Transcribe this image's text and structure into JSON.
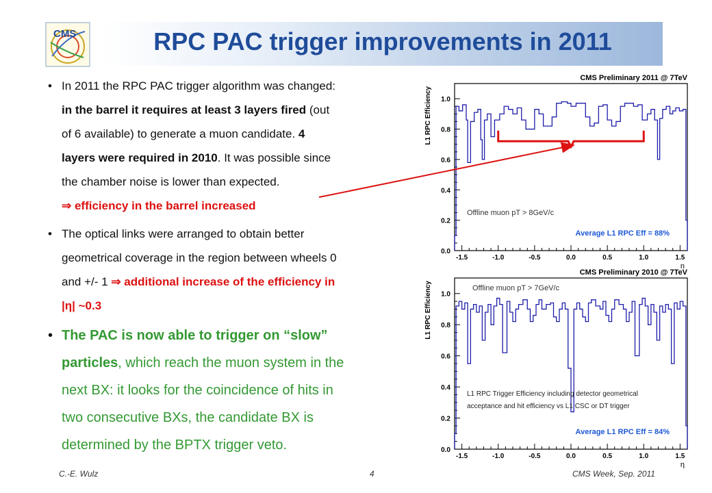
{
  "slide": {
    "title": "RPC PAC trigger improvements in 2011",
    "logo_text": "CMS",
    "footer": {
      "author": "C.-E. Wulz",
      "page": "4",
      "event": "CMS Week, Sep. 2011"
    }
  },
  "bullets": {
    "b1": {
      "l1": "In 2011 the RPC PAC trigger algorithm was changed:",
      "l2_bold": "in the barrel it requires at least 3 layers fired",
      "l2_rest": " (out",
      "l3_rest": "of 6 available) to generate a muon candidate. ",
      "l3_bold": "4",
      "l4_bold": "layers were required in 2010",
      "l4_rest": ". It was possible since",
      "l5": "the chamber noise is lower than expected.",
      "l6_sym": "⇒",
      "l6_red": " efficiency in the barrel increased"
    },
    "b2": {
      "l1": "The optical links were arranged to obtain better",
      "l2": "geometrical coverage in the region between wheels 0",
      "l3_start": "and +/- 1 ",
      "l3_sym": "⇒",
      "l3_red": " additional increase of the efficiency in",
      "l4_red": "|η| ~0.3"
    },
    "b3": {
      "l1_bold": "The PAC is now able to trigger on “slow”",
      "l2_bold": "particles",
      "l2_rest": ", which reach the muon system in the",
      "l3": "next BX: it looks for the coincidence of hits in",
      "l4": "two consecutive BXs, the candidate BX is",
      "l5": "determined by the BPTX trigger veto."
    }
  },
  "colors": {
    "title": "#1f4c9a",
    "hist": "#1c1caa",
    "avg": "#1e58d6",
    "highlight": "#dd1111",
    "green": "#339933"
  },
  "chart_data": [
    {
      "type": "step",
      "title": "CMS Preliminary 2011 @ 7TeV",
      "ylabel": "L1 RPC Efficiency",
      "xlabel": "η",
      "xlim": [
        -1.6,
        1.6
      ],
      "ylim": [
        0.0,
        1.1
      ],
      "xticks": [
        -1.5,
        -1.0,
        -0.5,
        0.0,
        0.5,
        1.0,
        1.5
      ],
      "xticklabels": [
        "-1.5",
        "-1.0",
        "-0.5",
        "0.0",
        "0.5",
        "1.0",
        "1.5"
      ],
      "yticks": [
        0.0,
        0.2,
        0.4,
        0.6,
        0.8,
        1.0
      ],
      "yticklabels": [
        "0.0",
        "0.2",
        "0.4",
        "0.6",
        "0.8",
        "1.0"
      ],
      "annotation": "Offline muon pT > 8GeV/c",
      "average_label": "Average L1 RPC Eff = 88%",
      "bins": [
        [
          -1.6,
          -1.58,
          0.1
        ],
        [
          -1.58,
          -1.54,
          0.95
        ],
        [
          -1.54,
          -1.49,
          0.92
        ],
        [
          -1.49,
          -1.44,
          0.96
        ],
        [
          -1.44,
          -1.42,
          0.86
        ],
        [
          -1.42,
          -1.38,
          0.58
        ],
        [
          -1.38,
          -1.33,
          0.85
        ],
        [
          -1.33,
          -1.28,
          0.91
        ],
        [
          -1.28,
          -1.24,
          0.93
        ],
        [
          -1.24,
          -1.22,
          0.73
        ],
        [
          -1.22,
          -1.19,
          0.6
        ],
        [
          -1.19,
          -1.15,
          0.86
        ],
        [
          -1.15,
          -1.1,
          0.9
        ],
        [
          -1.1,
          -1.05,
          0.75
        ],
        [
          -1.05,
          -0.98,
          0.86
        ],
        [
          -0.98,
          -0.92,
          0.9
        ],
        [
          -0.92,
          -0.86,
          0.95
        ],
        [
          -0.86,
          -0.8,
          0.93
        ],
        [
          -0.8,
          -0.74,
          0.9
        ],
        [
          -0.74,
          -0.68,
          0.94
        ],
        [
          -0.68,
          -0.62,
          0.86
        ],
        [
          -0.62,
          -0.56,
          0.8
        ],
        [
          -0.56,
          -0.5,
          0.8
        ],
        [
          -0.5,
          -0.44,
          0.93
        ],
        [
          -0.44,
          -0.38,
          0.9
        ],
        [
          -0.38,
          -0.32,
          0.82
        ],
        [
          -0.32,
          -0.26,
          0.82
        ],
        [
          -0.26,
          -0.2,
          0.88
        ],
        [
          -0.2,
          -0.13,
          0.97
        ],
        [
          -0.13,
          -0.05,
          0.98
        ],
        [
          -0.05,
          0.0,
          0.97
        ],
        [
          0.0,
          0.07,
          0.95
        ],
        [
          0.07,
          0.13,
          0.97
        ],
        [
          0.13,
          0.2,
          0.97
        ],
        [
          0.2,
          0.26,
          0.88
        ],
        [
          0.26,
          0.32,
          0.82
        ],
        [
          0.32,
          0.38,
          0.84
        ],
        [
          0.38,
          0.44,
          0.95
        ],
        [
          0.44,
          0.5,
          0.96
        ],
        [
          0.5,
          0.56,
          0.86
        ],
        [
          0.56,
          0.62,
          0.82
        ],
        [
          0.62,
          0.68,
          0.85
        ],
        [
          0.68,
          0.74,
          0.95
        ],
        [
          0.74,
          0.8,
          0.97
        ],
        [
          0.8,
          0.86,
          0.97
        ],
        [
          0.86,
          0.92,
          0.95
        ],
        [
          0.92,
          0.98,
          0.96
        ],
        [
          0.98,
          1.05,
          0.86
        ],
        [
          1.05,
          1.1,
          0.9
        ],
        [
          1.1,
          1.15,
          0.93
        ],
        [
          1.15,
          1.19,
          0.86
        ],
        [
          1.19,
          1.22,
          0.6
        ],
        [
          1.22,
          1.26,
          0.87
        ],
        [
          1.26,
          1.31,
          0.93
        ],
        [
          1.31,
          1.36,
          0.95
        ],
        [
          1.36,
          1.4,
          0.9
        ],
        [
          1.4,
          1.44,
          0.92
        ],
        [
          1.44,
          1.49,
          0.94
        ],
        [
          1.49,
          1.54,
          0.92
        ],
        [
          1.54,
          1.58,
          0.93
        ],
        [
          1.58,
          1.6,
          0.2
        ]
      ]
    },
    {
      "type": "step",
      "title": "CMS Preliminary 2010 @ 7TeV",
      "ylabel": "L1 RPC Efficiency",
      "xlabel": "η",
      "xlim": [
        -1.6,
        1.6
      ],
      "ylim": [
        0.0,
        1.1
      ],
      "xticks": [
        -1.5,
        -1.0,
        -0.5,
        0.0,
        0.5,
        1.0,
        1.5
      ],
      "xticklabels": [
        "-1.5",
        "-1.0",
        "-0.5",
        "0.0",
        "0.5",
        "1.0",
        "1.5"
      ],
      "yticks": [
        0.0,
        0.2,
        0.4,
        0.6,
        0.8,
        1.0
      ],
      "yticklabels": [
        "0.0",
        "0.2",
        "0.4",
        "0.6",
        "0.8",
        "1.0"
      ],
      "annotation": "Offline muon pT > 7GeV/c",
      "note_l1": "L1 RPC Trigger Efficiency including detector geometrical",
      "note_l2": "acceptance and hit efficiency vs L1 CSC or DT trigger",
      "average_label": "Average L1 RPC Eff = 84%",
      "bins": [
        [
          -1.6,
          -1.58,
          0.1
        ],
        [
          -1.58,
          -1.54,
          0.92
        ],
        [
          -1.54,
          -1.5,
          0.95
        ],
        [
          -1.5,
          -1.46,
          0.9
        ],
        [
          -1.46,
          -1.42,
          0.94
        ],
        [
          -1.42,
          -1.38,
          0.55
        ],
        [
          -1.38,
          -1.34,
          0.9
        ],
        [
          -1.34,
          -1.3,
          0.93
        ],
        [
          -1.3,
          -1.26,
          0.88
        ],
        [
          -1.26,
          -1.22,
          0.92
        ],
        [
          -1.22,
          -1.18,
          0.7
        ],
        [
          -1.18,
          -1.14,
          0.88
        ],
        [
          -1.14,
          -1.1,
          0.93
        ],
        [
          -1.1,
          -1.06,
          0.8
        ],
        [
          -1.06,
          -1.02,
          0.92
        ],
        [
          -1.02,
          -0.98,
          0.97
        ],
        [
          -0.98,
          -0.94,
          0.93
        ],
        [
          -0.94,
          -0.88,
          0.62
        ],
        [
          -0.88,
          -0.84,
          0.95
        ],
        [
          -0.84,
          -0.8,
          0.88
        ],
        [
          -0.8,
          -0.76,
          0.82
        ],
        [
          -0.76,
          -0.72,
          0.9
        ],
        [
          -0.72,
          -0.66,
          0.93
        ],
        [
          -0.66,
          -0.6,
          0.96
        ],
        [
          -0.6,
          -0.56,
          0.9
        ],
        [
          -0.56,
          -0.52,
          0.82
        ],
        [
          -0.52,
          -0.48,
          0.86
        ],
        [
          -0.48,
          -0.44,
          0.93
        ],
        [
          -0.44,
          -0.4,
          0.96
        ],
        [
          -0.4,
          -0.34,
          0.9
        ],
        [
          -0.34,
          -0.28,
          0.93
        ],
        [
          -0.28,
          -0.24,
          0.94
        ],
        [
          -0.24,
          -0.2,
          0.85
        ],
        [
          -0.2,
          -0.16,
          0.82
        ],
        [
          -0.16,
          -0.12,
          0.9
        ],
        [
          -0.12,
          -0.08,
          0.94
        ],
        [
          -0.08,
          -0.04,
          0.9
        ],
        [
          -0.04,
          0.0,
          0.52
        ],
        [
          0.0,
          0.04,
          0.24
        ],
        [
          0.04,
          0.08,
          0.9
        ],
        [
          0.08,
          0.12,
          0.94
        ],
        [
          0.12,
          0.16,
          0.9
        ],
        [
          0.16,
          0.2,
          0.85
        ],
        [
          0.2,
          0.24,
          0.82
        ],
        [
          0.24,
          0.28,
          0.94
        ],
        [
          0.28,
          0.34,
          0.96
        ],
        [
          0.34,
          0.4,
          0.92
        ],
        [
          0.4,
          0.44,
          0.9
        ],
        [
          0.44,
          0.48,
          0.95
        ],
        [
          0.48,
          0.52,
          0.86
        ],
        [
          0.52,
          0.56,
          0.82
        ],
        [
          0.56,
          0.6,
          0.9
        ],
        [
          0.6,
          0.66,
          0.96
        ],
        [
          0.66,
          0.72,
          0.93
        ],
        [
          0.72,
          0.76,
          0.9
        ],
        [
          0.76,
          0.8,
          0.82
        ],
        [
          0.8,
          0.84,
          0.88
        ],
        [
          0.84,
          0.88,
          0.95
        ],
        [
          0.88,
          0.94,
          0.6
        ],
        [
          0.94,
          0.98,
          0.93
        ],
        [
          0.98,
          1.02,
          0.97
        ],
        [
          1.02,
          1.06,
          0.92
        ],
        [
          1.06,
          1.1,
          0.8
        ],
        [
          1.1,
          1.14,
          0.93
        ],
        [
          1.14,
          1.18,
          0.88
        ],
        [
          1.18,
          1.22,
          0.7
        ],
        [
          1.22,
          1.26,
          0.92
        ],
        [
          1.26,
          1.3,
          0.88
        ],
        [
          1.3,
          1.34,
          0.93
        ],
        [
          1.34,
          1.38,
          0.9
        ],
        [
          1.38,
          1.42,
          0.55
        ],
        [
          1.42,
          1.46,
          0.94
        ],
        [
          1.46,
          1.5,
          0.9
        ],
        [
          1.5,
          1.54,
          0.95
        ],
        [
          1.54,
          1.58,
          0.92
        ],
        [
          1.58,
          1.6,
          0.15
        ]
      ]
    }
  ]
}
